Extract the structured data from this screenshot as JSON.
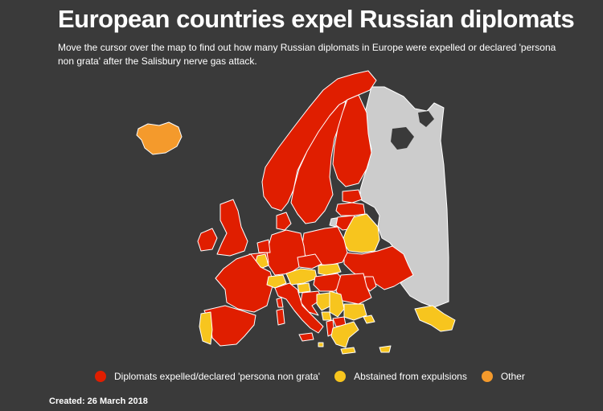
{
  "header": {
    "title": "European countries expel Russian diplomats",
    "subtitle": "Move the cursor over the map to find out how many Russian diplomats in Europe were expelled or declared 'persona non grata' after the Salisbury nerve gas attack."
  },
  "colors": {
    "background": "#3a3a3a",
    "expelled": "#e01e00",
    "abstained": "#f7c51e",
    "other": "#f49a2c",
    "russia": "#cccccc",
    "border": "#ffffff"
  },
  "legend": {
    "items": [
      {
        "label": "Diplomats expelled/declared 'persona non grata'",
        "color": "#e01e00"
      },
      {
        "label": "Abstained from expulsions",
        "color": "#f7c51e"
      },
      {
        "label": "Other",
        "color": "#f49a2c"
      }
    ]
  },
  "map_data": {
    "regions": [
      {
        "id": "iceland",
        "status": "other"
      },
      {
        "id": "norway",
        "status": "expelled"
      },
      {
        "id": "sweden",
        "status": "expelled"
      },
      {
        "id": "finland",
        "status": "expelled"
      },
      {
        "id": "estonia",
        "status": "expelled"
      },
      {
        "id": "latvia",
        "status": "expelled"
      },
      {
        "id": "lithuania",
        "status": "expelled"
      },
      {
        "id": "russia",
        "status": "none"
      },
      {
        "id": "belarus",
        "status": "abstained"
      },
      {
        "id": "ukraine",
        "status": "expelled"
      },
      {
        "id": "moldova",
        "status": "expelled"
      },
      {
        "id": "poland",
        "status": "expelled"
      },
      {
        "id": "germany",
        "status": "expelled"
      },
      {
        "id": "denmark",
        "status": "expelled"
      },
      {
        "id": "netherlands",
        "status": "expelled"
      },
      {
        "id": "belgium",
        "status": "expelled"
      },
      {
        "id": "luxembourg",
        "status": "abstained"
      },
      {
        "id": "france",
        "status": "expelled"
      },
      {
        "id": "united-kingdom",
        "status": "expelled"
      },
      {
        "id": "ireland",
        "status": "expelled"
      },
      {
        "id": "spain",
        "status": "expelled"
      },
      {
        "id": "portugal",
        "status": "abstained"
      },
      {
        "id": "switzerland",
        "status": "abstained"
      },
      {
        "id": "austria",
        "status": "abstained"
      },
      {
        "id": "czechia",
        "status": "expelled"
      },
      {
        "id": "slovakia",
        "status": "abstained"
      },
      {
        "id": "hungary",
        "status": "expelled"
      },
      {
        "id": "italy",
        "status": "expelled"
      },
      {
        "id": "slovenia",
        "status": "abstained"
      },
      {
        "id": "croatia",
        "status": "expelled"
      },
      {
        "id": "bosnia",
        "status": "abstained"
      },
      {
        "id": "serbia",
        "status": "abstained"
      },
      {
        "id": "montenegro",
        "status": "abstained"
      },
      {
        "id": "albania",
        "status": "expelled"
      },
      {
        "id": "macedonia",
        "status": "expelled"
      },
      {
        "id": "romania",
        "status": "expelled"
      },
      {
        "id": "bulgaria",
        "status": "abstained"
      },
      {
        "id": "greece",
        "status": "abstained"
      },
      {
        "id": "turkey-europe",
        "status": "abstained"
      },
      {
        "id": "cyprus",
        "status": "abstained"
      },
      {
        "id": "malta",
        "status": "abstained"
      },
      {
        "id": "crete",
        "status": "abstained"
      },
      {
        "id": "sardinia",
        "status": "expelled"
      },
      {
        "id": "corsica",
        "status": "expelled"
      },
      {
        "id": "sicily",
        "status": "expelled"
      }
    ]
  },
  "footer": {
    "created": "Created: 26 March 2018"
  }
}
